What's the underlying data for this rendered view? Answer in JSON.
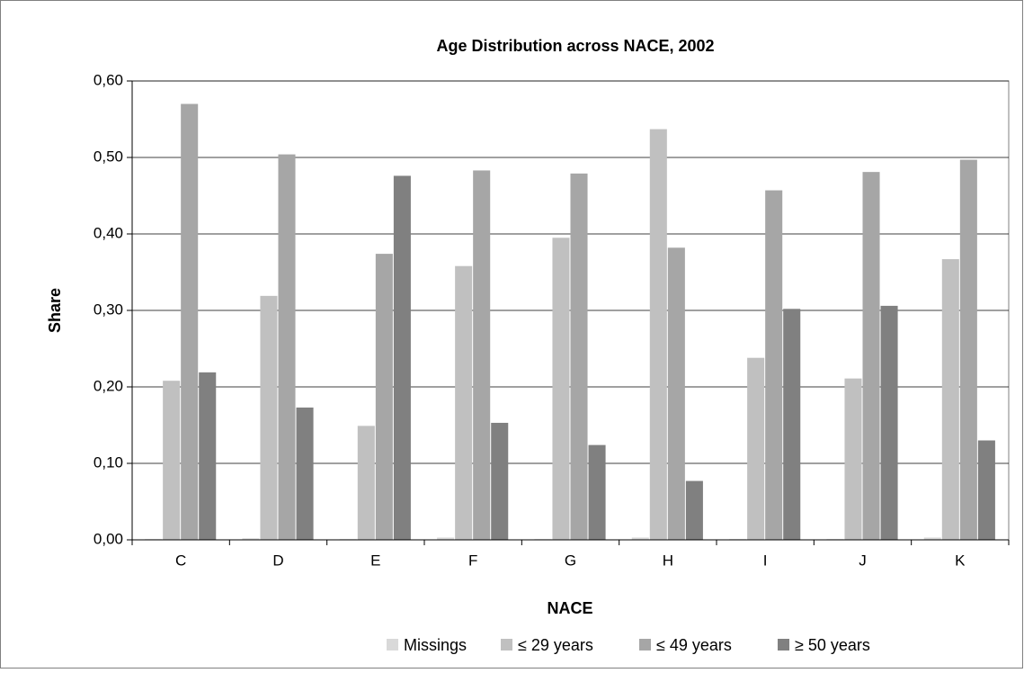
{
  "chart_data": {
    "type": "bar",
    "title": "Age Distribution across NACE, 2002",
    "x_label": "NACE",
    "y_label": "Share",
    "categories": [
      "C",
      "D",
      "E",
      "F",
      "G",
      "H",
      "I",
      "J",
      "K"
    ],
    "series": [
      {
        "name": "Missings",
        "color": "#d9d9d9",
        "values": [
          0.001,
          0.002,
          0.001,
          0.003,
          0.001,
          0.003,
          0.001,
          0.001,
          0.003
        ]
      },
      {
        "name": "≤ 29 years",
        "color": "#c0c0c0",
        "values": [
          0.208,
          0.319,
          0.149,
          0.358,
          0.395,
          0.537,
          0.238,
          0.211,
          0.367
        ]
      },
      {
        "name": "≤ 49 years",
        "color": "#a6a6a6",
        "values": [
          0.57,
          0.504,
          0.374,
          0.483,
          0.479,
          0.382,
          0.457,
          0.481,
          0.497
        ]
      },
      {
        "name": "≥ 50 years",
        "color": "#808080",
        "values": [
          0.219,
          0.173,
          0.476,
          0.153,
          0.124,
          0.077,
          0.302,
          0.306,
          0.13
        ]
      }
    ],
    "ylim": [
      0,
      0.6
    ],
    "yticks": [
      {
        "value": 0,
        "label": "0,00"
      },
      {
        "value": 0.1,
        "label": "0,10"
      },
      {
        "value": 0.2,
        "label": "0,20"
      },
      {
        "value": 0.3,
        "label": "0,30"
      },
      {
        "value": 0.4,
        "label": "0,40"
      },
      {
        "value": 0.5,
        "label": "0,50"
      },
      {
        "value": 0.6,
        "label": "0,60"
      }
    ],
    "grid": true,
    "legend": "bottom"
  }
}
